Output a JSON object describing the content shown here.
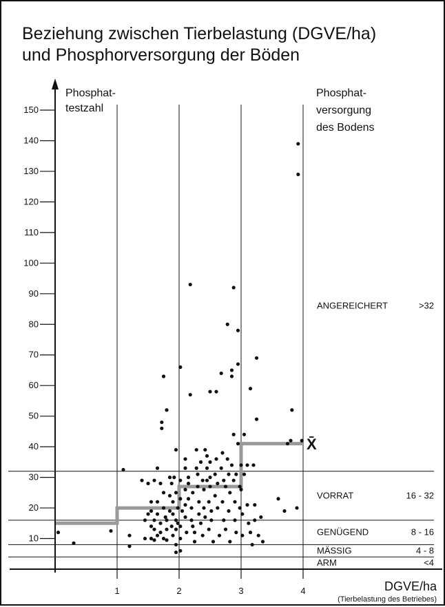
{
  "chart_data": {
    "type": "scatter",
    "title": [
      "Beziehung zwischen Tierbelastung (DGVE/ha)",
      "und Phosphorversorgung der Böden"
    ],
    "ylabel": [
      "Phosphat-",
      "testzahl"
    ],
    "xlabel": "DGVE/ha",
    "xlabel_sub": "(Tierbelastung des Betriebes)",
    "right_label": [
      "Phosphat-",
      "versorgung",
      "des Bodens"
    ],
    "xlim": [
      -0.1,
      4.4
    ],
    "ylim": [
      0,
      150
    ],
    "x_ticks": [
      1,
      2,
      3,
      4
    ],
    "y_ticks": [
      10,
      20,
      30,
      40,
      50,
      60,
      70,
      80,
      90,
      100,
      110,
      120,
      130,
      140,
      150
    ],
    "vertical_lines": [
      1,
      2,
      3,
      4
    ],
    "horizontal_lines": [
      4,
      8,
      16,
      32
    ],
    "mean_symbol": "X̄",
    "mean_steps": [
      {
        "x": [
          0,
          1
        ],
        "y": 15
      },
      {
        "x": [
          1,
          2
        ],
        "y": 20
      },
      {
        "x": [
          2,
          3
        ],
        "y": 27
      },
      {
        "x": [
          3,
          4
        ],
        "y": 41
      }
    ],
    "zones": [
      {
        "label": "ANGEREICHERT",
        "range": ">32",
        "y": 86
      },
      {
        "label": "VORRAT",
        "range": "16 - 32",
        "y": 24
      },
      {
        "label": "GENÜGEND",
        "range": "8 - 16",
        "y": 12
      },
      {
        "label": "MÄSSIG",
        "range": "4 - 8",
        "y": 6
      },
      {
        "label": "ARM",
        "range": "<4",
        "y": 2
      }
    ],
    "points": [
      [
        0.05,
        12
      ],
      [
        0.3,
        8.5
      ],
      [
        0.9,
        12.5
      ],
      [
        1.1,
        32.5
      ],
      [
        1.2,
        11
      ],
      [
        1.2,
        7.5
      ],
      [
        1.4,
        29
      ],
      [
        1.45,
        16
      ],
      [
        1.45,
        10
      ],
      [
        1.5,
        28
      ],
      [
        1.5,
        18
      ],
      [
        1.55,
        22
      ],
      [
        1.55,
        14
      ],
      [
        1.55,
        10
      ],
      [
        1.55,
        19
      ],
      [
        1.6,
        29
      ],
      [
        1.6,
        13
      ],
      [
        1.6,
        9.5
      ],
      [
        1.6,
        16
      ],
      [
        1.65,
        33
      ],
      [
        1.65,
        22
      ],
      [
        1.65,
        18
      ],
      [
        1.65,
        11
      ],
      [
        1.7,
        28
      ],
      [
        1.7,
        15
      ],
      [
        1.7,
        12
      ],
      [
        1.75,
        63
      ],
      [
        1.72,
        48
      ],
      [
        1.72,
        46
      ],
      [
        1.75,
        25
      ],
      [
        1.75,
        20
      ],
      [
        1.75,
        10
      ],
      [
        1.78,
        17
      ],
      [
        1.8,
        52
      ],
      [
        1.8,
        16
      ],
      [
        1.8,
        13
      ],
      [
        1.8,
        9.5
      ],
      [
        1.85,
        30
      ],
      [
        1.85,
        24
      ],
      [
        1.85,
        19
      ],
      [
        1.88,
        28
      ],
      [
        1.88,
        14
      ],
      [
        1.9,
        22
      ],
      [
        1.9,
        18
      ],
      [
        1.9,
        11
      ],
      [
        1.92,
        30
      ],
      [
        1.95,
        39
      ],
      [
        1.95,
        25
      ],
      [
        1.95,
        16
      ],
      [
        1.95,
        13
      ],
      [
        1.95,
        8
      ],
      [
        1.95,
        5.5
      ],
      [
        1.98,
        20
      ],
      [
        1.98,
        15
      ],
      [
        2.02,
        66
      ],
      [
        2.02,
        29
      ],
      [
        2.02,
        23
      ],
      [
        2.02,
        14
      ],
      [
        2.02,
        10
      ],
      [
        2.02,
        6
      ],
      [
        2.05,
        19
      ],
      [
        2.1,
        36
      ],
      [
        2.1,
        33
      ],
      [
        2.1,
        26
      ],
      [
        2.1,
        21
      ],
      [
        2.1,
        17
      ],
      [
        2.12,
        12
      ],
      [
        2.15,
        30
      ],
      [
        2.15,
        28
      ],
      [
        2.15,
        23
      ],
      [
        2.18,
        93
      ],
      [
        2.18,
        57
      ],
      [
        2.2,
        20
      ],
      [
        2.2,
        16
      ],
      [
        2.22,
        25
      ],
      [
        2.22,
        14
      ],
      [
        2.25,
        12
      ],
      [
        2.25,
        9
      ],
      [
        2.28,
        39
      ],
      [
        2.28,
        33
      ],
      [
        2.3,
        31
      ],
      [
        2.3,
        27
      ],
      [
        2.32,
        22
      ],
      [
        2.32,
        18
      ],
      [
        2.35,
        35
      ],
      [
        2.35,
        15
      ],
      [
        2.38,
        29
      ],
      [
        2.38,
        11
      ],
      [
        2.4,
        26
      ],
      [
        2.4,
        20
      ],
      [
        2.42,
        39
      ],
      [
        2.42,
        17
      ],
      [
        2.45,
        37
      ],
      [
        2.45,
        33
      ],
      [
        2.45,
        29
      ],
      [
        2.48,
        22
      ],
      [
        2.48,
        13
      ],
      [
        2.5,
        58
      ],
      [
        2.5,
        35
      ],
      [
        2.5,
        30
      ],
      [
        2.5,
        27
      ],
      [
        2.52,
        19
      ],
      [
        2.52,
        16
      ],
      [
        2.55,
        9
      ],
      [
        2.58,
        24
      ],
      [
        2.58,
        31
      ],
      [
        2.6,
        58
      ],
      [
        2.6,
        36
      ],
      [
        2.62,
        28
      ],
      [
        2.62,
        20
      ],
      [
        2.65,
        11
      ],
      [
        2.68,
        64
      ],
      [
        2.68,
        33
      ],
      [
        2.7,
        22
      ],
      [
        2.7,
        38
      ],
      [
        2.72,
        29
      ],
      [
        2.72,
        16
      ],
      [
        2.75,
        27
      ],
      [
        2.75,
        13
      ],
      [
        2.78,
        80
      ],
      [
        2.78,
        36
      ],
      [
        2.8,
        31
      ],
      [
        2.8,
        19
      ],
      [
        2.82,
        25
      ],
      [
        2.82,
        9
      ],
      [
        2.85,
        65
      ],
      [
        2.85,
        63
      ],
      [
        2.85,
        34
      ],
      [
        2.88,
        92
      ],
      [
        2.88,
        44
      ],
      [
        2.88,
        29
      ],
      [
        2.9,
        22
      ],
      [
        2.9,
        16
      ],
      [
        2.92,
        31
      ],
      [
        2.92,
        12
      ],
      [
        2.95,
        67
      ],
      [
        2.95,
        78
      ],
      [
        2.95,
        41
      ],
      [
        2.98,
        27
      ],
      [
        2.98,
        20
      ],
      [
        3.0,
        34
      ],
      [
        3.0,
        26
      ],
      [
        3.02,
        18
      ],
      [
        3.02,
        11
      ],
      [
        3.05,
        31
      ],
      [
        3.05,
        44
      ],
      [
        3.1,
        34
      ],
      [
        3.1,
        21
      ],
      [
        3.12,
        15
      ],
      [
        3.15,
        59
      ],
      [
        3.15,
        12
      ],
      [
        3.18,
        8
      ],
      [
        3.2,
        34
      ],
      [
        3.22,
        16
      ],
      [
        3.22,
        21
      ],
      [
        3.25,
        49
      ],
      [
        3.25,
        69
      ],
      [
        3.28,
        11
      ],
      [
        3.32,
        17
      ],
      [
        3.35,
        9
      ],
      [
        3.6,
        23
      ],
      [
        3.7,
        19
      ],
      [
        3.75,
        41
      ],
      [
        3.8,
        42
      ],
      [
        3.82,
        52
      ],
      [
        3.9,
        20
      ],
      [
        3.92,
        129
      ],
      [
        3.92,
        139
      ],
      [
        3.98,
        42
      ]
    ]
  }
}
